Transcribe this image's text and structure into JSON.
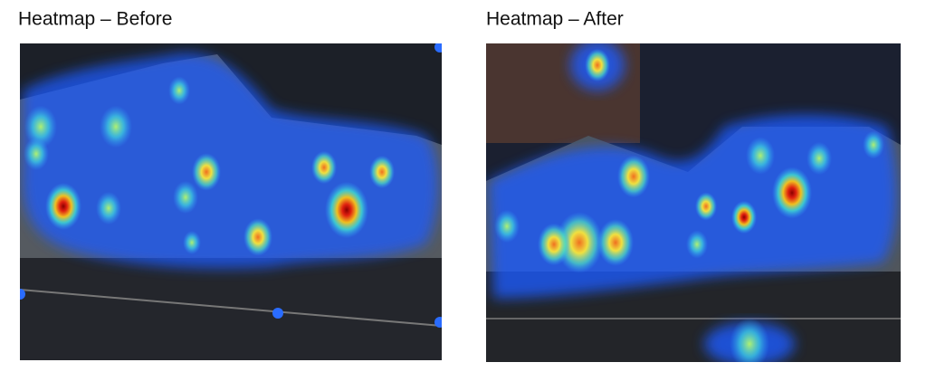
{
  "panels": [
    {
      "title": "Heatmap – Before"
    },
    {
      "title": "Heatmap – After"
    }
  ]
}
